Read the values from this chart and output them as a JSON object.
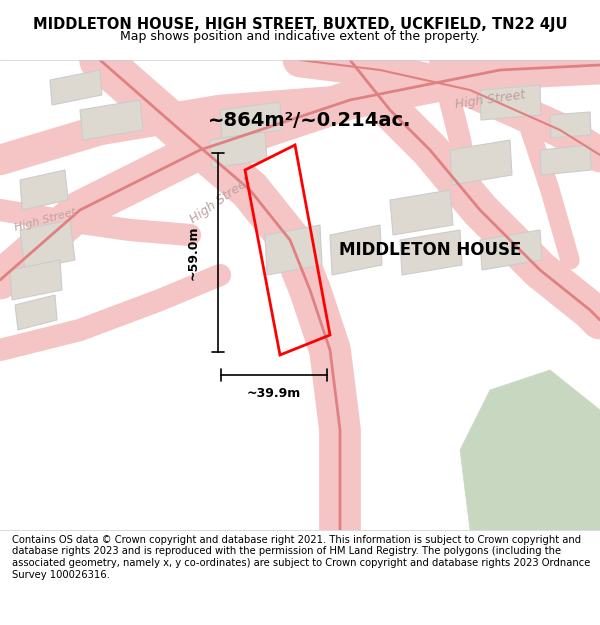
{
  "title": "MIDDLETON HOUSE, HIGH STREET, BUXTED, UCKFIELD, TN22 4JU",
  "subtitle": "Map shows position and indicative extent of the property.",
  "area_label": "~864m²/~0.214ac.",
  "property_label": "MIDDLETON HOUSE",
  "dim_width": "~39.9m",
  "dim_height": "~59.0m",
  "bg_color": "#f5f0eb",
  "map_bg": "#f5f0eb",
  "road_color": "#f5c5c5",
  "road_center_color": "#e08080",
  "building_color": "#ddd8d0",
  "building_outline": "#cccccc",
  "highlight_outline": "#ff0000",
  "highlight_fill": "none",
  "street_label_color": "#c0a0a0",
  "green_color": "#c8d8c0",
  "footer_text": "Contains OS data © Crown copyright and database right 2021. This information is subject to Crown copyright and database rights 2023 and is reproduced with the permission of HM Land Registry. The polygons (including the associated geometry, namely x, y co-ordinates) are subject to Crown copyright and database rights 2023 Ordnance Survey 100026316.",
  "fig_width": 6.0,
  "fig_height": 6.25,
  "dpi": 100
}
